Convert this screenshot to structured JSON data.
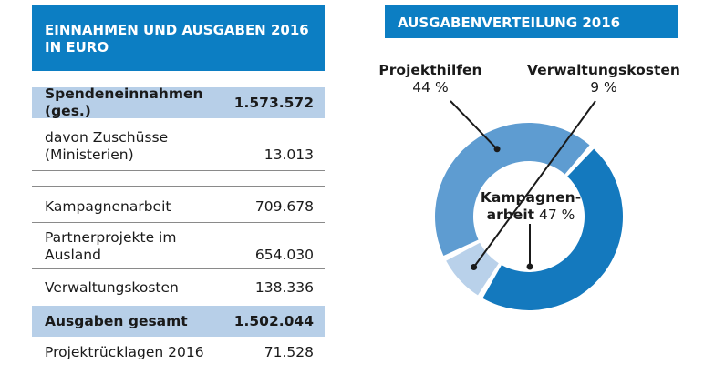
{
  "colors": {
    "brand": "#0c7ec3",
    "highlight_row": "#b7cfe8"
  },
  "left_panel": {
    "title_line1": "EINNAHMEN UND AUSGABEN 2016",
    "title_line2": "IN EURO",
    "rows": [
      {
        "label": "Spendeneinnahmen (ges.)",
        "value": "1.573.572"
      },
      {
        "label": "davon Zuschüsse\n(Ministerien)",
        "value": "13.013"
      },
      {
        "label": "Kampagnenarbeit",
        "value": "709.678"
      },
      {
        "label": "Partnerprojekte im\nAusland",
        "value": "654.030"
      },
      {
        "label": "Verwaltungskosten",
        "value": "138.336"
      },
      {
        "label": "Ausgaben gesamt",
        "value": "1.502.044"
      },
      {
        "label": "Projektrücklagen 2016",
        "value": "71.528"
      }
    ]
  },
  "right_panel": {
    "title": "AUSGABENVERTEILUNG 2016"
  },
  "chart_data": {
    "type": "pie",
    "title": "AUSGABENVERTEILUNG 2016",
    "unit": "%",
    "slices": [
      {
        "name": "Kampagnenarbeit",
        "name_display_line1": "Kampagnen-",
        "name_display_line2": "arbeit",
        "value": 47,
        "value_label": "47 %",
        "color": "#1479be"
      },
      {
        "name": "Verwaltungskosten",
        "value": 9,
        "value_label": "9 %",
        "color": "#b9d1ea"
      },
      {
        "name": "Projekthilfen",
        "value": 44,
        "value_label": "44 %",
        "color": "#5e9cd1"
      }
    ]
  }
}
